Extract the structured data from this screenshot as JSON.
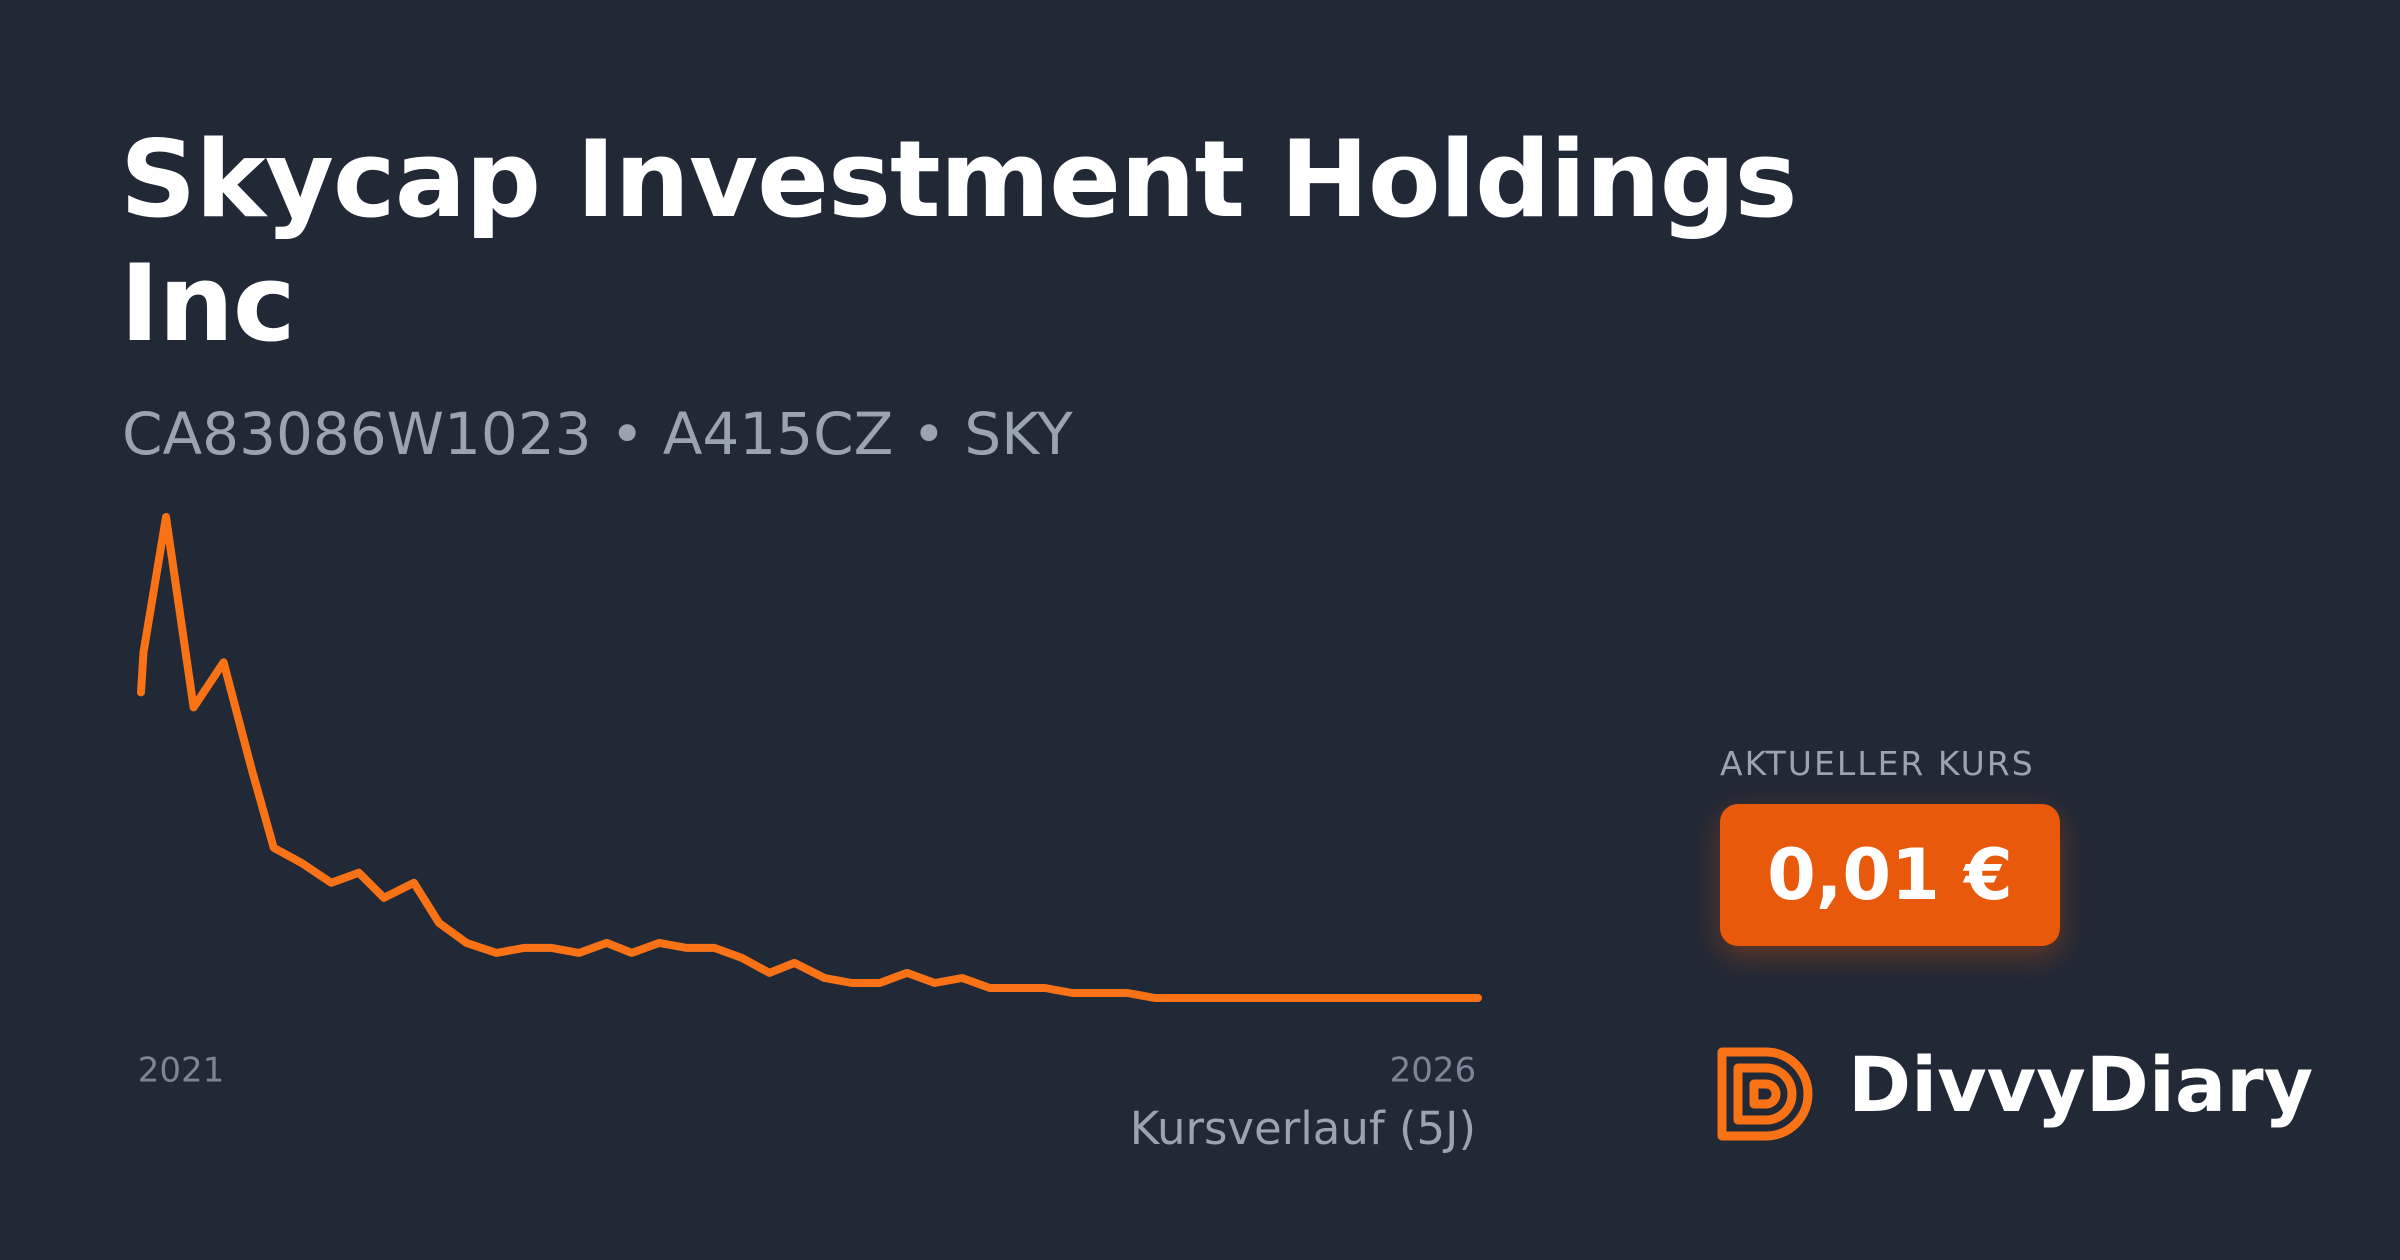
{
  "header": {
    "title": "Skycap Investment Holdings Inc",
    "subtitle": "CA83086W1023 • A415CZ • SKY"
  },
  "price": {
    "label": "AKTUELLER KURS",
    "value": "0,01 €"
  },
  "brand": "DivvyDiary",
  "chart_data": {
    "type": "line",
    "caption": "Kursverlauf (5J)",
    "x": [
      2020.84,
      2020.85,
      2020.94,
      2021.05,
      2021.17,
      2021.28,
      2021.37,
      2021.48,
      2021.6,
      2021.71,
      2021.81,
      2021.93,
      2022.03,
      2022.14,
      2022.26,
      2022.37,
      2022.48,
      2022.59,
      2022.7,
      2022.8,
      2022.91,
      2023.02,
      2023.13,
      2023.24,
      2023.35,
      2023.45,
      2023.57,
      2023.68,
      2023.79,
      2023.9,
      2024.01,
      2024.12,
      2024.23,
      2024.34,
      2024.45,
      2024.56,
      2024.67,
      2024.78,
      2024.89,
      2025.0,
      2025.11,
      2025.22,
      2025.33,
      2025.44,
      2025.55,
      2025.66,
      2025.77,
      2025.88,
      2025.99,
      2026.1,
      2026.18
    ],
    "series": [
      {
        "color": "#f97316",
        "values": [
          66,
          74,
          101,
          63,
          72,
          51,
          35,
          32,
          28,
          30,
          25,
          28,
          20,
          16,
          14,
          15,
          15,
          14,
          16,
          14,
          16,
          15,
          15,
          13,
          10,
          12,
          9,
          8,
          8,
          10,
          8,
          9,
          7,
          7,
          7,
          6,
          6,
          6,
          5,
          5,
          5,
          5,
          5,
          5,
          5,
          5,
          5,
          5,
          5,
          5,
          5
        ]
      }
    ],
    "xlim": [
      2020.84,
      2026.18
    ],
    "xticks": [
      2021,
      2026
    ],
    "grid": false
  }
}
